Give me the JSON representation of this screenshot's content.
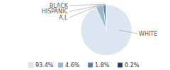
{
  "chart_data": {
    "type": "pie",
    "categories": [
      "WHITE",
      "A.I.",
      "HISPANIC",
      "BLACK"
    ],
    "values": [
      93.4,
      4.6,
      1.8,
      0.2
    ],
    "value_labels": [
      "93.4%",
      "4.6%",
      "1.8%",
      "0.2%"
    ],
    "colors": [
      "#dce6f1",
      "#9ab8cc",
      "#5a7f9e",
      "#1e4060"
    ],
    "legend": "bottom"
  }
}
